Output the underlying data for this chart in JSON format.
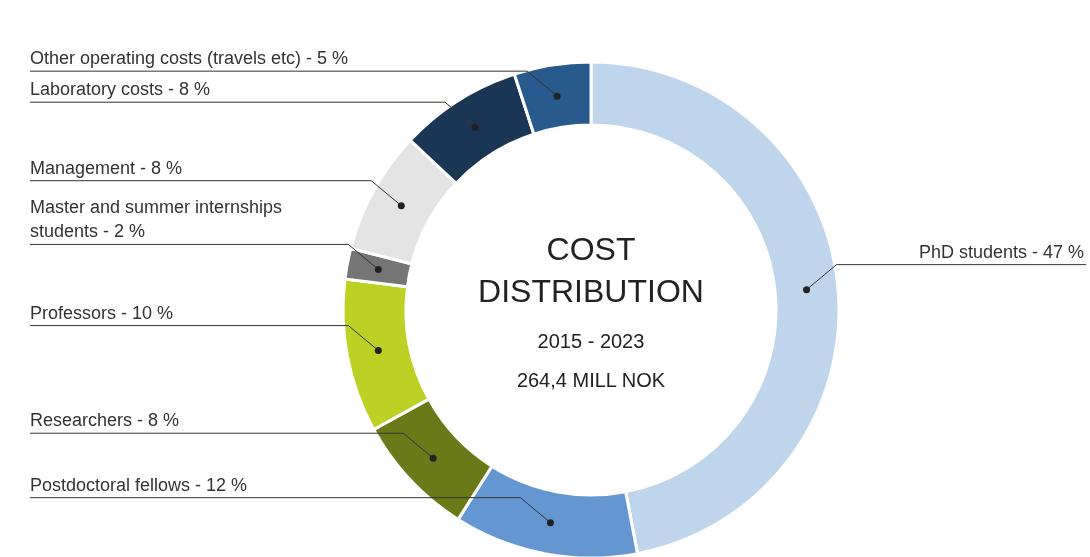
{
  "chart_data": {
    "type": "donut",
    "title": "COST DISTRIBUTION",
    "subtitle": "2015 - 2023",
    "annotations": [
      "264,4 MILL NOK"
    ],
    "categories": [
      "PhD students",
      "Postdoctoral fellows",
      "Researchers",
      "Professors",
      "Master and summer internships students",
      "Management",
      "Laboratory costs",
      "Other operating costs (travels etc)"
    ],
    "values": [
      47,
      12,
      8,
      10,
      2,
      8,
      8,
      5
    ],
    "value_labels": [
      "47 %",
      "12 %",
      "8 %",
      "10 %",
      "2 %",
      "8 %",
      "8 %",
      "5 %"
    ],
    "colors": [
      "#bfd5ec",
      "#6497d1",
      "#6b7a18",
      "#bdd125",
      "#757575",
      "#e4e4e4",
      "#1b3655",
      "#285a8e"
    ],
    "legend": false
  }
}
